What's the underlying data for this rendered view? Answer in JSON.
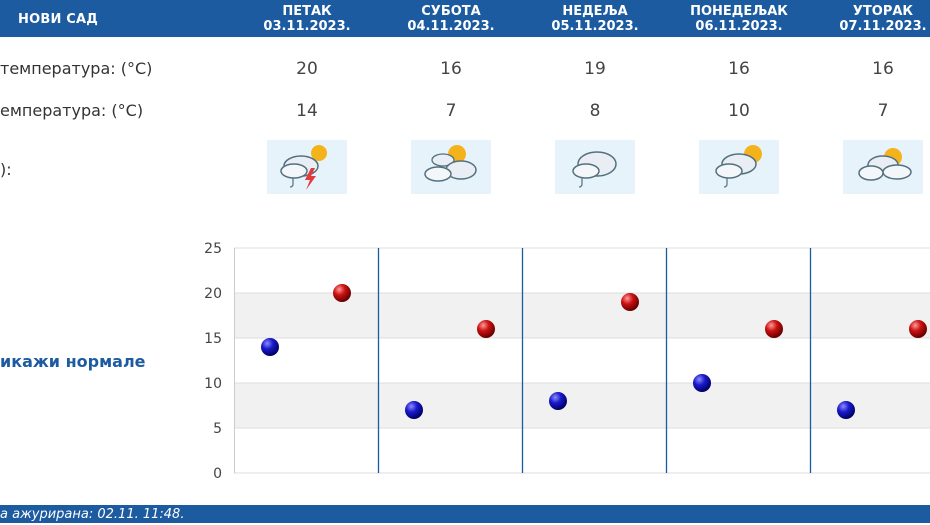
{
  "header": {
    "city": "НОВИ САД",
    "days": [
      {
        "name": "ПЕТАК",
        "date": "03.11.2023."
      },
      {
        "name": "СУБОТА",
        "date": "04.11.2023."
      },
      {
        "name": "НЕДЕЉА",
        "date": "05.11.2023."
      },
      {
        "name": "ПОНЕДЕЉАК",
        "date": "06.11.2023."
      },
      {
        "name": "УТОРАК",
        "date": "07.11.2023."
      }
    ]
  },
  "rows": {
    "max_label": "температура: (°C)",
    "min_label": "емпература: (°C)",
    "icon_label": "):"
  },
  "max_temps": [
    "20",
    "16",
    "19",
    "16",
    "16"
  ],
  "min_temps": [
    "14",
    "7",
    "8",
    "10",
    "7"
  ],
  "weather_icons": [
    "cloud-sun-rain-lightning-icon",
    "cloud-sun-icon",
    "cloud-rain-icon",
    "cloud-sun-rain-icon",
    "cloud-sun-icon"
  ],
  "normals_link": "икажи нормале",
  "footer": {
    "updated_label": "а ажурирана:",
    "updated_value": "02.11. 11:48."
  },
  "colors": {
    "brand": "#1d5ba0",
    "min_marker": "#1a1acc",
    "max_marker": "#cc1111"
  },
  "chart_data": {
    "type": "scatter",
    "categories": [
      "ПЕТАК",
      "СУБОТА",
      "НЕДЕЉА",
      "ПОНЕДЕЉАК",
      "УТОРАК"
    ],
    "series": [
      {
        "values": [
          14,
          7,
          8,
          10,
          7
        ]
      },
      {
        "values": [
          20,
          16,
          19,
          16,
          16
        ]
      }
    ],
    "ylim": [
      0,
      25
    ],
    "yticks": [
      0,
      5,
      10,
      15,
      20,
      25
    ],
    "grid": true
  }
}
